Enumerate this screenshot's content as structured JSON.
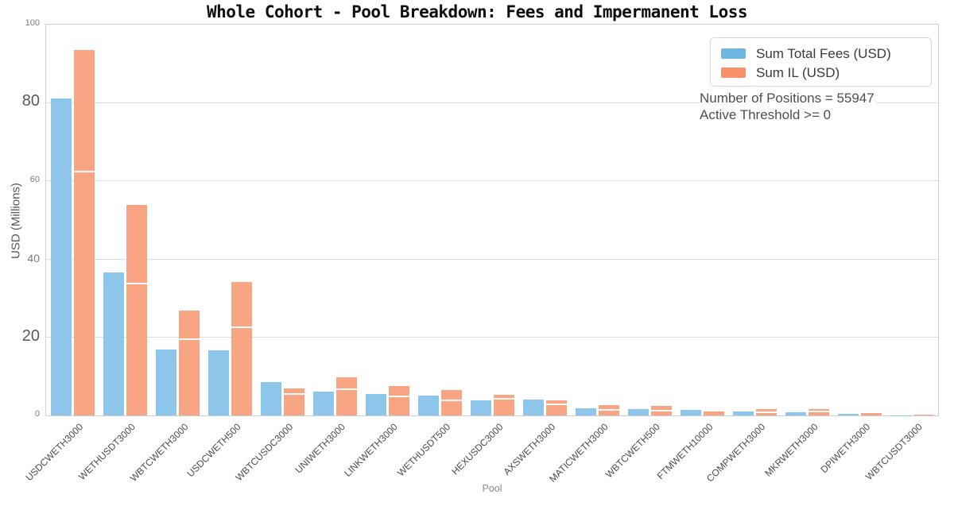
{
  "title": "Whole Cohort - Pool Breakdown: Fees and Impermanent Loss",
  "annotation": {
    "line1": "Number of Positions = 55947",
    "line2": "Active Threshold >= 0"
  },
  "axes": {
    "xlabel": "Pool",
    "ylabel": "USD (Millions)"
  },
  "colors": {
    "fees_bar": "#8dc6ea",
    "il_bar": "#f8a583",
    "fees_legend": "#6fb5e2",
    "il_legend": "#f7906b",
    "gridline": "#dcdddf",
    "spine": "#cdd0d3"
  },
  "chart_data": {
    "type": "bar",
    "title": "Whole Cohort - Pool Breakdown: Fees and Impermanent Loss",
    "xlabel": "Pool",
    "ylabel": "USD (Millions)",
    "ylim": [
      0,
      100
    ],
    "y_ticks": [
      0,
      20,
      40,
      60,
      80,
      100
    ],
    "grid": true,
    "legend_position": "upper right",
    "categories": [
      "USDCWETH3000",
      "WETHUSDT3000",
      "WBTCWETH3000",
      "USDCWETH500",
      "WBTCUSDC3000",
      "UNIWETH3000",
      "LINKWETH3000",
      "WETHUSDT500",
      "HEXUSDC3000",
      "AXSWETH3000",
      "MATICWETH3000",
      "WBTCWETH500",
      "FTMWETH10000",
      "COMPWETH3000",
      "MKRWETH3000",
      "DPIWETH3000",
      "WBTCUSDT3000"
    ],
    "series": [
      {
        "name": "Sum Total Fees (USD)",
        "color": "#8dc6ea",
        "legend_color": "#6fb5e2",
        "values": [
          81.2,
          36.6,
          16.8,
          16.6,
          8.5,
          6.1,
          5.5,
          5.1,
          3.8,
          4.1,
          1.8,
          1.6,
          1.4,
          1.0,
          0.8,
          0.4,
          0.05
        ]
      },
      {
        "name": "Sum IL (USD)",
        "color": "#f8a583",
        "legend_color": "#f7906b",
        "values": [
          93.4,
          53.8,
          26.9,
          34.2,
          6.9,
          9.7,
          7.5,
          6.5,
          5.3,
          3.8,
          2.6,
          2.4,
          1.0,
          1.6,
          1.6,
          0.6,
          0.3
        ],
        "inner_markers": [
          62.3,
          33.8,
          19.6,
          22.5,
          5.5,
          6.7,
          4.9,
          3.8,
          4.3,
          2.8,
          1.4,
          1.2,
          null,
          0.8,
          1.0,
          null,
          null
        ]
      }
    ]
  }
}
